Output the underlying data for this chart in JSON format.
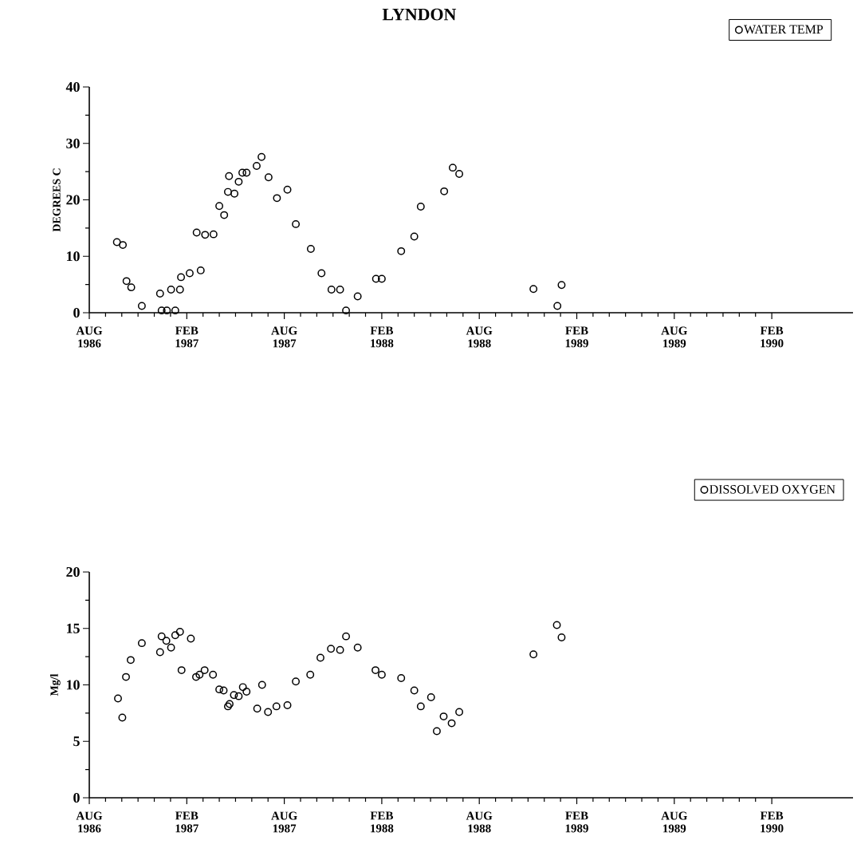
{
  "chart_data": [
    {
      "type": "scatter",
      "title": "LYNDON",
      "ylabel": "DEGREES C",
      "legend": "top right",
      "marker": "circle",
      "xlim": [
        "1986-08",
        "1990-07"
      ],
      "ylim": [
        0,
        40
      ],
      "yticks": [
        0,
        10,
        20,
        30,
        40
      ],
      "xticks": [
        {
          "value": "1986-08",
          "label": "AUG 1986"
        },
        {
          "value": "1987-02",
          "label": "FEB 1987"
        },
        {
          "value": "1987-08",
          "label": "AUG 1987"
        },
        {
          "value": "1988-02",
          "label": "FEB 1988"
        },
        {
          "value": "1988-08",
          "label": "AUG 1988"
        },
        {
          "value": "1989-02",
          "label": "FEB 1989"
        },
        {
          "value": "1989-08",
          "label": "AUG 1989"
        },
        {
          "value": "1990-02",
          "label": "FEB 1990"
        }
      ],
      "x": [
        "1986-09-22",
        "1986-10-03",
        "1986-10-10",
        "1986-10-19",
        "1986-11-08",
        "1986-12-12",
        "1986-12-15",
        "1986-12-25",
        "1987-01-02",
        "1987-01-10",
        "1987-01-19",
        "1987-01-21",
        "1987-02-06",
        "1987-02-18",
        "1987-02-25",
        "1987-03-05",
        "1987-03-21",
        "1987-04-01",
        "1987-04-10",
        "1987-04-17",
        "1987-04-19",
        "1987-04-29",
        "1987-05-07",
        "1987-05-14",
        "1987-05-22",
        "1987-06-10",
        "1987-06-19",
        "1987-07-02",
        "1987-07-18",
        "1987-08-07",
        "1987-08-23",
        "1987-09-20",
        "1987-10-10",
        "1987-10-29",
        "1987-11-14",
        "1987-11-25",
        "1987-12-17",
        "1988-01-21",
        "1988-02-01",
        "1988-03-07",
        "1988-04-01",
        "1988-04-13",
        "1988-05-27",
        "1988-06-12",
        "1988-06-24",
        "1988-11-11",
        "1988-12-26",
        "1989-01-03"
      ],
      "series": [
        {
          "name": "WATER TEMP",
          "color": "#000000",
          "values": [
            12.5,
            12.0,
            5.6,
            4.5,
            1.2,
            3.4,
            0.4,
            0.4,
            4.1,
            0.4,
            4.1,
            6.3,
            7.0,
            14.2,
            7.5,
            13.8,
            13.9,
            18.9,
            17.3,
            21.4,
            24.2,
            21.1,
            23.2,
            24.8,
            24.8,
            26.0,
            27.6,
            24.0,
            20.3,
            21.8,
            15.7,
            11.3,
            7.0,
            4.1,
            4.1,
            0.4,
            2.9,
            6.0,
            6.0,
            10.9,
            13.5,
            18.8,
            21.5,
            25.7,
            24.6,
            4.2,
            1.2,
            4.9
          ]
        }
      ]
    },
    {
      "type": "scatter",
      "ylabel": "Mg/l",
      "legend": "top right",
      "marker": "circle",
      "xlim": [
        "1986-08",
        "1990-07"
      ],
      "ylim": [
        0,
        20
      ],
      "yticks": [
        0,
        5,
        10,
        15,
        20
      ],
      "xticks": [
        {
          "value": "1986-08",
          "label": "AUG 1986"
        },
        {
          "value": "1987-02",
          "label": "FEB 1987"
        },
        {
          "value": "1987-08",
          "label": "AUG 1987"
        },
        {
          "value": "1988-02",
          "label": "FEB 1988"
        },
        {
          "value": "1988-08",
          "label": "AUG 1988"
        },
        {
          "value": "1989-02",
          "label": "FEB 1989"
        },
        {
          "value": "1989-08",
          "label": "AUG 1989"
        },
        {
          "value": "1990-02",
          "label": "FEB 1990"
        }
      ],
      "x": [
        "1986-09-24",
        "1986-10-02",
        "1986-10-09",
        "1986-10-18",
        "1986-11-08",
        "1986-12-12",
        "1986-12-15",
        "1986-12-24",
        "1987-01-02",
        "1987-01-10",
        "1987-01-19",
        "1987-01-22",
        "1987-02-08",
        "1987-02-17",
        "1987-02-23",
        "1987-03-04",
        "1987-03-20",
        "1987-04-01",
        "1987-04-09",
        "1987-04-17",
        "1987-04-20",
        "1987-04-28",
        "1987-05-07",
        "1987-05-15",
        "1987-05-22",
        "1987-06-11",
        "1987-06-20",
        "1987-07-01",
        "1987-07-17",
        "1987-08-07",
        "1987-08-23",
        "1987-09-19",
        "1987-10-08",
        "1987-10-28",
        "1987-11-14",
        "1987-11-25",
        "1987-12-17",
        "1988-01-20",
        "1988-02-01",
        "1988-03-07",
        "1988-04-01",
        "1988-04-13",
        "1988-05-02",
        "1988-05-13",
        "1988-05-26",
        "1988-06-10",
        "1988-06-24",
        "1988-11-11",
        "1988-12-25",
        "1989-01-03"
      ],
      "series": [
        {
          "name": "DISSOLVED OXYGEN",
          "color": "#000000",
          "values": [
            8.8,
            7.1,
            10.7,
            12.2,
            13.7,
            12.9,
            14.3,
            13.9,
            13.3,
            14.4,
            14.7,
            11.3,
            14.1,
            10.7,
            10.9,
            11.3,
            10.9,
            9.6,
            9.5,
            8.1,
            8.3,
            9.1,
            9.0,
            9.8,
            9.4,
            7.9,
            10.0,
            7.6,
            8.1,
            8.2,
            10.3,
            10.9,
            12.4,
            13.2,
            13.1,
            14.3,
            13.3,
            11.3,
            10.9,
            10.6,
            9.5,
            8.1,
            8.9,
            5.9,
            7.2,
            6.6,
            7.6,
            12.7,
            15.3,
            14.2
          ]
        }
      ]
    }
  ]
}
